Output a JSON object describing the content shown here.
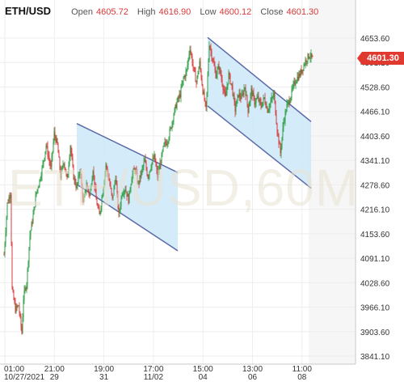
{
  "header": {
    "symbol": "ETH/USD",
    "open_label": "Open",
    "open": "4605.72",
    "high_label": "High",
    "high": "4616.90",
    "low_label": "Low",
    "low": "4600.12",
    "close_label": "Close",
    "close": "4601.30"
  },
  "watermark": "ETH/USD,60M",
  "last_price_tag": "4601.30",
  "colors": {
    "up": "#2e9e45",
    "down": "#d83a3a",
    "channel_fill": "#cde8f8",
    "channel_line": "#5b6aa8",
    "tag": "#e0392f"
  },
  "chart_data": {
    "type": "candlestick",
    "y_ticks": [
      "4653.60",
      "4591.10",
      "4528.60",
      "4466.10",
      "4403.60",
      "4341.10",
      "4278.60",
      "4216.10",
      "4153.60",
      "4091.10",
      "4028.60",
      "3966.10",
      "3903.60",
      "3841.10"
    ],
    "ylim": [
      3841.1,
      4653.6
    ],
    "x_ticks": [
      {
        "time": "01:00",
        "date": "10/27/2021"
      },
      {
        "time": "21:00",
        "date": "29"
      },
      {
        "time": "19:00",
        "date": "31"
      },
      {
        "time": "17:00",
        "date": "11/02"
      },
      {
        "time": "15:00",
        "date": "04"
      },
      {
        "time": "13:00",
        "date": "06"
      },
      {
        "time": "11:00",
        "date": "08"
      }
    ],
    "last_price": 4601.3,
    "price_path": [
      [
        0,
        4100
      ],
      [
        4,
        4230
      ],
      [
        8,
        4260
      ],
      [
        10,
        4010
      ],
      [
        14,
        3960
      ],
      [
        18,
        3970
      ],
      [
        22,
        3900
      ],
      [
        24,
        3990
      ],
      [
        28,
        4030
      ],
      [
        32,
        4150
      ],
      [
        36,
        4200
      ],
      [
        40,
        4260
      ],
      [
        44,
        4290
      ],
      [
        48,
        4330
      ],
      [
        52,
        4380
      ],
      [
        55,
        4350
      ],
      [
        58,
        4320
      ],
      [
        62,
        4410
      ],
      [
        66,
        4380
      ],
      [
        70,
        4300
      ],
      [
        74,
        4340
      ],
      [
        78,
        4290
      ],
      [
        82,
        4380
      ],
      [
        86,
        4300
      ],
      [
        90,
        4270
      ],
      [
        94,
        4320
      ],
      [
        98,
        4230
      ],
      [
        102,
        4280
      ],
      [
        106,
        4250
      ],
      [
        110,
        4320
      ],
      [
        114,
        4240
      ],
      [
        118,
        4200
      ],
      [
        122,
        4260
      ],
      [
        126,
        4330
      ],
      [
        130,
        4290
      ],
      [
        134,
        4240
      ],
      [
        138,
        4300
      ],
      [
        142,
        4200
      ],
      [
        146,
        4260
      ],
      [
        150,
        4270
      ],
      [
        154,
        4240
      ],
      [
        158,
        4300
      ],
      [
        162,
        4320
      ],
      [
        166,
        4280
      ],
      [
        170,
        4310
      ],
      [
        174,
        4340
      ],
      [
        178,
        4300
      ],
      [
        182,
        4330
      ],
      [
        186,
        4350
      ],
      [
        190,
        4300
      ],
      [
        194,
        4340
      ],
      [
        198,
        4380
      ],
      [
        202,
        4390
      ],
      [
        206,
        4420
      ],
      [
        210,
        4460
      ],
      [
        214,
        4490
      ],
      [
        218,
        4510
      ],
      [
        222,
        4550
      ],
      [
        226,
        4570
      ],
      [
        230,
        4630
      ],
      [
        234,
        4580
      ],
      [
        238,
        4540
      ],
      [
        242,
        4590
      ],
      [
        246,
        4520
      ],
      [
        250,
        4470
      ],
      [
        254,
        4640
      ],
      [
        258,
        4600
      ],
      [
        262,
        4560
      ],
      [
        266,
        4580
      ],
      [
        270,
        4540
      ],
      [
        274,
        4500
      ],
      [
        278,
        4560
      ],
      [
        282,
        4530
      ],
      [
        286,
        4470
      ],
      [
        290,
        4510
      ],
      [
        294,
        4500
      ],
      [
        298,
        4530
      ],
      [
        302,
        4470
      ],
      [
        306,
        4520
      ],
      [
        310,
        4490
      ],
      [
        314,
        4500
      ],
      [
        318,
        4480
      ],
      [
        322,
        4500
      ],
      [
        326,
        4470
      ],
      [
        330,
        4490
      ],
      [
        334,
        4510
      ],
      [
        338,
        4420
      ],
      [
        342,
        4360
      ],
      [
        346,
        4440
      ],
      [
        350,
        4480
      ],
      [
        354,
        4500
      ],
      [
        358,
        4530
      ],
      [
        362,
        4550
      ],
      [
        366,
        4560
      ],
      [
        370,
        4580
      ],
      [
        374,
        4600
      ],
      [
        378,
        4610
      ],
      [
        382,
        4601
      ]
    ],
    "channels": [
      {
        "upper": [
          [
            90,
            4435
          ],
          [
            215,
            4310
          ]
        ],
        "lower": [
          [
            90,
            4280
          ],
          [
            215,
            4110
          ]
        ]
      },
      {
        "upper": [
          [
            252,
            4655
          ],
          [
            380,
            4440
          ]
        ],
        "lower": [
          [
            252,
            4480
          ],
          [
            380,
            4270
          ]
        ]
      }
    ]
  }
}
